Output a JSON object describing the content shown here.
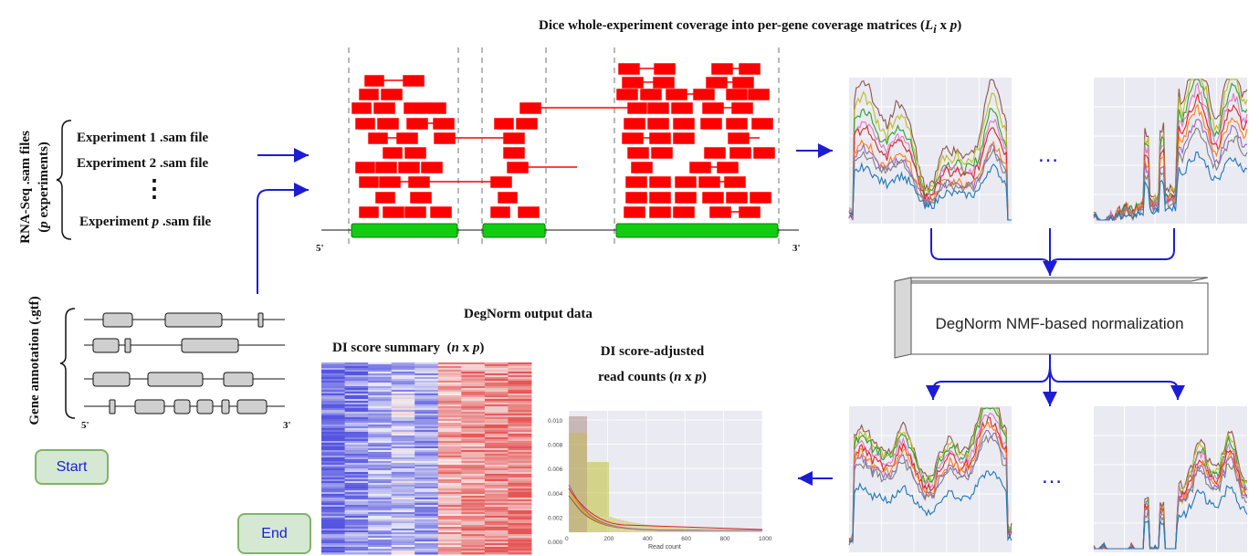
{
  "title": "Dice whole-experiment coverage into per-gene coverage matrices",
  "title_math": "(L",
  "title_sub": "i",
  "title_tail": " x p)",
  "rnaseq": {
    "label_line1": "RNA-Seq .sam files",
    "label_line2": "(p experiments)",
    "files": [
      "Experiment 1 .sam file",
      "Experiment 2 .sam file",
      "Experiment p .sam file"
    ],
    "vdots": "⋮"
  },
  "gene_annotation": {
    "label": "Gene annotation (.gtf)",
    "five": "5'",
    "three": "3'"
  },
  "coverage": {
    "five": "5'",
    "three": "3'"
  },
  "ellipsis": "…",
  "normalization_label": "DegNorm NMF-based normalization",
  "output_title": "DegNorm output data",
  "di_summary_label": "DI score summary  (n x p)",
  "di_adjusted_line1": "DI score-adjusted",
  "di_adjusted_line2": "read counts (n x p)",
  "histogram": {
    "xlabel": "Read count",
    "xticks": [
      "0",
      "200",
      "400",
      "600",
      "800",
      "1000"
    ],
    "yticks": [
      "0.010",
      "0.008",
      "0.006",
      "0.004",
      "0.002",
      "0.000"
    ]
  },
  "buttons": {
    "start": "Start",
    "end": "End"
  },
  "colors": {
    "arrow": "#1c1cd6",
    "read": "#ff0000",
    "exon": "#11cc11",
    "button_fill": "#d5e8d4",
    "button_border": "#82b366"
  }
}
